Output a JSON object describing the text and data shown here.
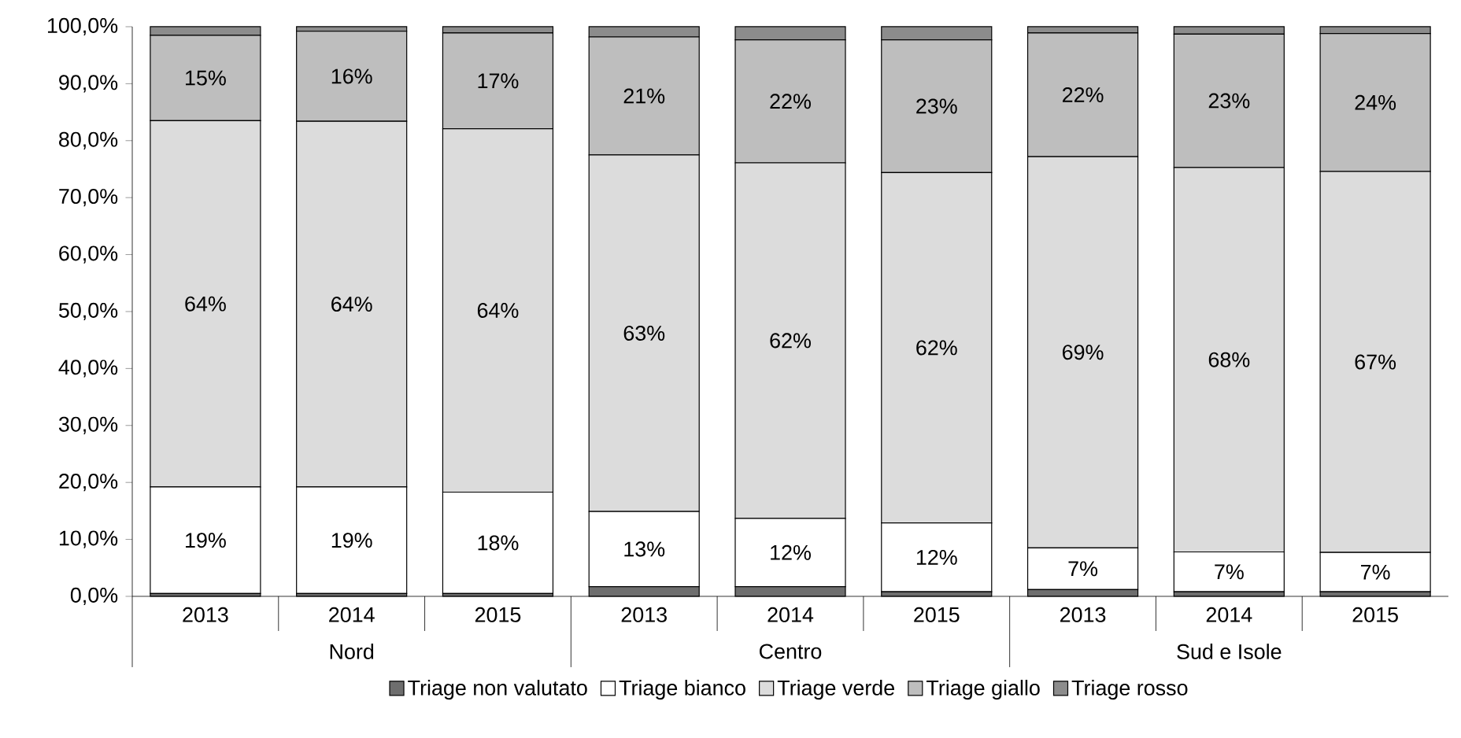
{
  "chart_data": {
    "type": "bar",
    "stacked": true,
    "categories": [
      "2013",
      "2014",
      "2015",
      "2013",
      "2014",
      "2015",
      "2013",
      "2014",
      "2015"
    ],
    "annotations": [
      "Nord",
      "Centro",
      "Sud e Isole"
    ],
    "ylim": [
      0,
      100
    ],
    "yticks": [
      {
        "value": 0,
        "label": "0,0%"
      },
      {
        "value": 10,
        "label": "10,0%"
      },
      {
        "value": 20,
        "label": "20,0%"
      },
      {
        "value": 30,
        "label": "30,0%"
      },
      {
        "value": 40,
        "label": "40,0%"
      },
      {
        "value": 50,
        "label": "50,0%"
      },
      {
        "value": 60,
        "label": "60,0%"
      },
      {
        "value": 70,
        "label": "70,0%"
      },
      {
        "value": 80,
        "label": "80,0%"
      },
      {
        "value": 90,
        "label": "90,0%"
      },
      {
        "value": 100,
        "label": "100,0%"
      }
    ],
    "legend": "bottom",
    "series": [
      {
        "name": "Triage non valutato",
        "color": "#6e6e6e",
        "values": [
          0.5,
          0.5,
          0.5,
          1.7,
          1.7,
          0.8,
          1.2,
          0.8,
          0.8
        ]
      },
      {
        "name": "Triage bianco",
        "color": "#ffffff",
        "values": [
          18.7,
          18.7,
          17.8,
          13.2,
          12.0,
          12.1,
          7.3,
          7.0,
          6.9
        ],
        "value_labels": [
          "19%",
          "19%",
          "18%",
          "13%",
          "12%",
          "12%",
          "7%",
          "7%",
          "7%"
        ]
      },
      {
        "name": "Triage verde",
        "color": "#dcdcdc",
        "values": [
          64.3,
          64.2,
          63.8,
          62.6,
          62.4,
          61.5,
          68.7,
          67.5,
          66.9
        ],
        "value_labels": [
          "64%",
          "64%",
          "64%",
          "63%",
          "62%",
          "62%",
          "69%",
          "68%",
          "67%"
        ]
      },
      {
        "name": "Triage giallo",
        "color": "#bebebe",
        "values": [
          15.0,
          15.8,
          16.8,
          20.7,
          21.6,
          23.3,
          21.7,
          23.4,
          24.2
        ],
        "value_labels": [
          "15%",
          "16%",
          "17%",
          "21%",
          "22%",
          "23%",
          "22%",
          "23%",
          "24%"
        ]
      },
      {
        "name": "Triage rosso",
        "color": "#8c8c8c",
        "values": [
          1.5,
          0.8,
          1.1,
          1.8,
          2.3,
          2.3,
          1.1,
          1.3,
          1.2
        ]
      }
    ]
  }
}
